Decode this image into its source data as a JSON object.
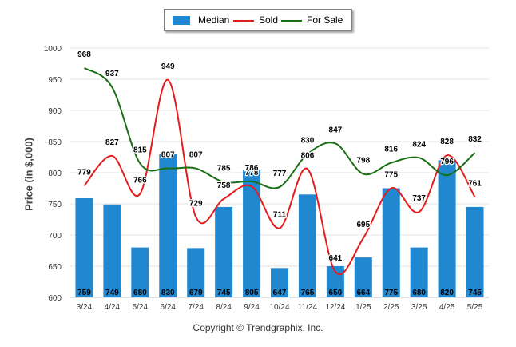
{
  "chart_data": {
    "type": "bar",
    "categories": [
      "3/24",
      "4/24",
      "5/24",
      "6/24",
      "7/24",
      "8/24",
      "9/24",
      "10/24",
      "11/24",
      "12/24",
      "1/25",
      "2/25",
      "3/25",
      "4/25",
      "5/25"
    ],
    "series": [
      {
        "name": "Median",
        "type": "bar",
        "color": "#2188d0",
        "values": [
          759,
          749,
          680,
          830,
          679,
          745,
          805,
          647,
          765,
          650,
          664,
          775,
          680,
          820,
          745
        ]
      },
      {
        "name": "Sold",
        "type": "line",
        "color": "#e51b1b",
        "values": [
          779,
          827,
          766,
          949,
          729,
          758,
          778,
          711,
          806,
          641,
          695,
          775,
          737,
          828,
          761
        ]
      },
      {
        "name": "For Sale",
        "type": "line",
        "color": "#1a6e14",
        "values": [
          968,
          937,
          815,
          807,
          807,
          785,
          786,
          777,
          830,
          847,
          798,
          816,
          824,
          796,
          832
        ]
      }
    ],
    "ylabel": "Price (in $,000)",
    "ylim": [
      600,
      1000
    ],
    "yticks": [
      600,
      650,
      700,
      750,
      800,
      850,
      900,
      950,
      1000
    ],
    "grid": true,
    "legend_position": "top-center"
  },
  "legend": {
    "median": "Median",
    "sold": "Sold",
    "for_sale": "For Sale"
  },
  "copyright": "Copyright © Trendgraphix, Inc."
}
